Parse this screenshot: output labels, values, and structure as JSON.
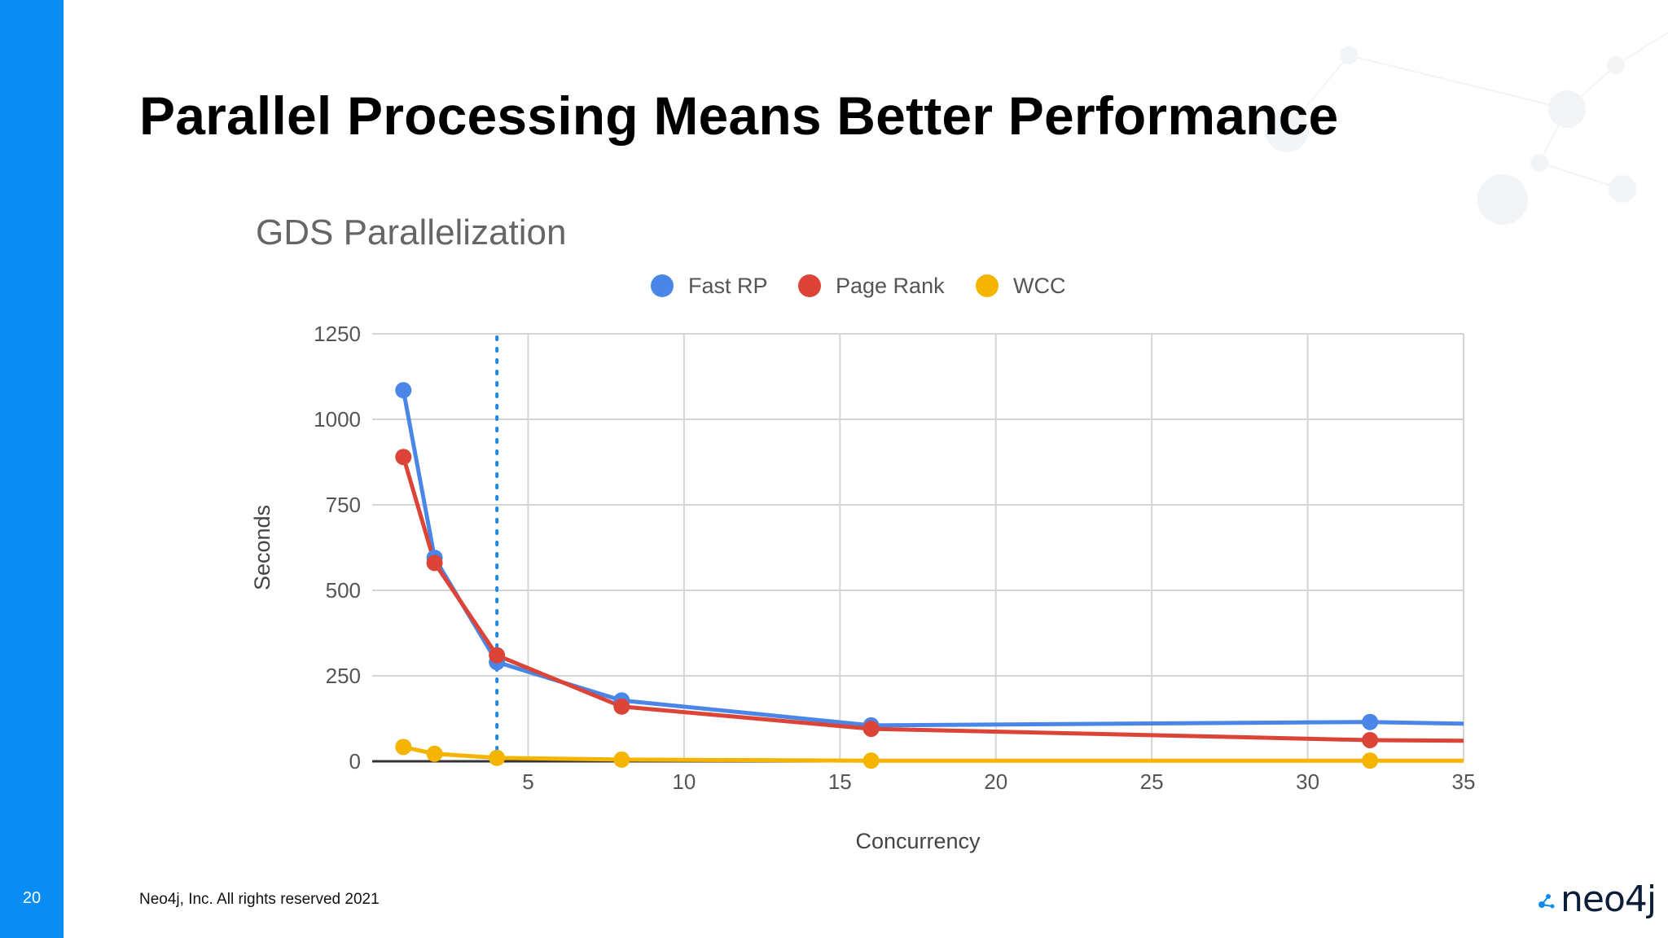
{
  "slide": {
    "title": "Parallel Processing Means Better Performance",
    "page_number": "20",
    "footer": "Neo4j, Inc. All rights reserved 2021",
    "logo_text": "neo4j"
  },
  "colors": {
    "accent_bar": "#0a8cf5",
    "fast_rp": "#4a86e8",
    "page_rank": "#db4437",
    "wcc": "#f4b400",
    "marker_line": "#1e88e5"
  },
  "chart_data": {
    "type": "line",
    "title": "GDS Parallelization",
    "xlabel": "Concurrency",
    "ylabel": "Seconds",
    "xlim": [
      0,
      35
    ],
    "ylim": [
      0,
      1250
    ],
    "x_ticks": [
      5,
      10,
      15,
      20,
      25,
      30,
      35
    ],
    "y_ticks": [
      0,
      250,
      500,
      750,
      1000,
      1250
    ],
    "grid": true,
    "legend_position": "top",
    "vertical_marker_x": 4,
    "x": [
      1,
      2,
      4,
      8,
      16,
      32,
      35
    ],
    "series": [
      {
        "name": "Fast RP",
        "color": "#4a86e8",
        "values": [
          1085,
          595,
          290,
          178,
          105,
          115,
          110
        ],
        "markers": [
          true,
          true,
          true,
          true,
          true,
          true,
          false
        ]
      },
      {
        "name": "Page Rank",
        "color": "#db4437",
        "values": [
          890,
          580,
          310,
          160,
          95,
          62,
          60
        ],
        "markers": [
          true,
          true,
          true,
          true,
          true,
          true,
          false
        ]
      },
      {
        "name": "WCC",
        "color": "#f4b400",
        "values": [
          42,
          22,
          10,
          5,
          2,
          2,
          2
        ],
        "markers": [
          true,
          true,
          true,
          true,
          true,
          true,
          false
        ]
      }
    ]
  }
}
